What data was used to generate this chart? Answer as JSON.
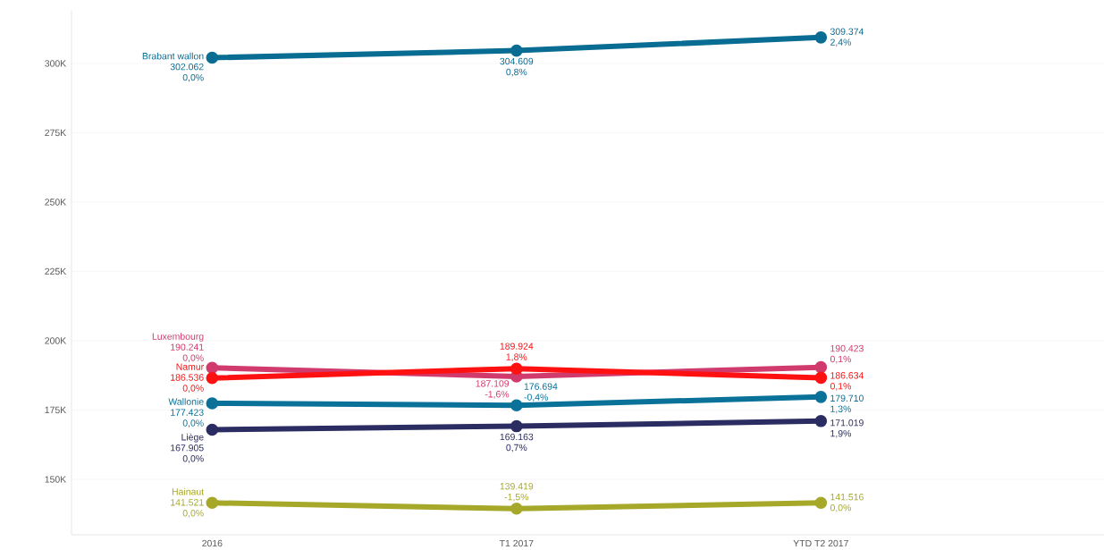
{
  "chart_data": {
    "type": "line",
    "categories": [
      "2016",
      "T1 2017",
      "YTD T2 2017"
    ],
    "series": [
      {
        "name": "Brabant wallon",
        "color": "#086c93",
        "values": [
          302062,
          304609,
          309374
        ],
        "value_labels": [
          "302.062",
          "304.609",
          "309.374"
        ]
      },
      {
        "name": "Luxembourg",
        "color": "#d13a6c",
        "values": [
          190241,
          187109,
          190423
        ],
        "value_labels": [
          "190.241",
          "187.109",
          "190.423"
        ]
      },
      {
        "name": "Namur",
        "color": "#ff1111",
        "values": [
          186536,
          189924,
          186634
        ],
        "value_labels": [
          "186.536",
          "189.924",
          "186.634"
        ]
      },
      {
        "name": "Wallonie",
        "color": "#0a7299",
        "values": [
          177423,
          176694,
          179710
        ],
        "value_labels": [
          "177.423",
          "176.694",
          "179.710"
        ]
      },
      {
        "name": "Liège",
        "color": "#2b2d62",
        "values": [
          167905,
          169163,
          171019
        ],
        "value_labels": [
          "167.905",
          "169.163",
          "171.019"
        ]
      },
      {
        "name": "Hainaut",
        "color": "#a6a82a",
        "values": [
          141521,
          139419,
          141516
        ],
        "value_labels": [
          "141.521",
          "139.419",
          "141.516"
        ]
      }
    ],
    "annotations": [
      {
        "text": "0,0%",
        "x": "2016",
        "y": 302062
      },
      {
        "text": "0,8%",
        "x": "T1 2017",
        "y": 304609
      },
      {
        "text": "2,4%",
        "x": "YTD T2 2017",
        "y": 309374
      },
      {
        "text": "0,0%",
        "x": "2016",
        "y": 190241
      },
      {
        "text": "-1,6%",
        "x": "T1 2017",
        "y": 187109
      },
      {
        "text": "0,1%",
        "x": "YTD T2 2017",
        "y": 190423
      },
      {
        "text": "0,0%",
        "x": "2016",
        "y": 186536
      },
      {
        "text": "1,8%",
        "x": "T1 2017",
        "y": 189924
      },
      {
        "text": "0,1%",
        "x": "YTD T2 2017",
        "y": 186634
      },
      {
        "text": "0,0%",
        "x": "2016",
        "y": 177423
      },
      {
        "text": "-0,4%",
        "x": "T1 2017",
        "y": 176694
      },
      {
        "text": "1,3%",
        "x": "YTD T2 2017",
        "y": 179710
      },
      {
        "text": "0,0%",
        "x": "2016",
        "y": 167905
      },
      {
        "text": "0,7%",
        "x": "T1 2017",
        "y": 169163
      },
      {
        "text": "1,9%",
        "x": "YTD T2 2017",
        "y": 171019
      },
      {
        "text": "0,0%",
        "x": "2016",
        "y": 141521
      },
      {
        "text": "-1,5%",
        "x": "T1 2017",
        "y": 139419
      },
      {
        "text": "0,0%",
        "x": "YTD T2 2017",
        "y": 141516
      }
    ],
    "ylim": [
      130000,
      319000
    ],
    "yticks": [
      {
        "value": 150000,
        "label": "150K"
      },
      {
        "value": 175000,
        "label": "175K"
      },
      {
        "value": 200000,
        "label": "200K"
      },
      {
        "value": 225000,
        "label": "225K"
      },
      {
        "value": 250000,
        "label": "250K"
      },
      {
        "value": 275000,
        "label": "275K"
      },
      {
        "value": 300000,
        "label": "300K"
      }
    ],
    "grid": "y",
    "marker": "circle",
    "line_style": "solid"
  }
}
